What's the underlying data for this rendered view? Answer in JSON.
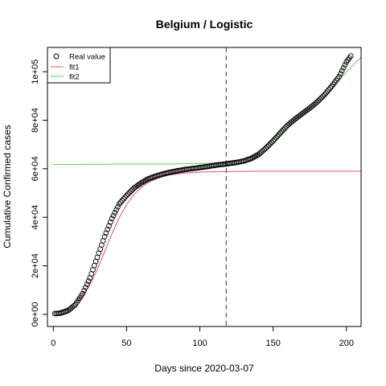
{
  "chart_data": {
    "type": "scatter",
    "title": "Belgium / Logistic",
    "xlabel": "Days since 2020-03-07",
    "ylabel": "Cumulative Confirmed cases",
    "xlim": [
      -4,
      210
    ],
    "ylim": [
      -5000,
      110000
    ],
    "x_ticks": [
      0,
      50,
      100,
      150,
      200
    ],
    "x_tick_labels": [
      "0",
      "50",
      "100",
      "150",
      "200"
    ],
    "y_ticks": [
      0,
      20000,
      40000,
      60000,
      80000,
      100000
    ],
    "y_tick_labels": [
      "0e+00",
      "2e+04",
      "4e+04",
      "6e+04",
      "8e+04",
      "1e+05"
    ],
    "grid": false,
    "legend_position": "top-left",
    "vline_x": 118,
    "colors": {
      "points": "#000000",
      "fit1": "#DF536B",
      "fit2": "#61D04F",
      "vline": "#555555"
    },
    "legend": [
      {
        "label": "Real value",
        "kind": "point",
        "color": "#000000"
      },
      {
        "label": "fit1",
        "kind": "line",
        "color": "#DF536B"
      },
      {
        "label": "fit2",
        "kind": "line",
        "color": "#61D04F"
      }
    ],
    "series": [
      {
        "name": "Real value",
        "kind": "points",
        "x": [
          1,
          5,
          10,
          15,
          20,
          25,
          30,
          35,
          40,
          45,
          50,
          55,
          60,
          65,
          70,
          75,
          80,
          85,
          90,
          95,
          100,
          105,
          110,
          115,
          118,
          120,
          125,
          130,
          135,
          140,
          145,
          150,
          155,
          160,
          165,
          170,
          175,
          180,
          185,
          190,
          195,
          200,
          203
        ],
        "y": [
          300,
          500,
          1500,
          4000,
          8500,
          15000,
          23500,
          32000,
          39500,
          45500,
          49000,
          52000,
          54200,
          55900,
          57000,
          57900,
          58600,
          59200,
          59700,
          60100,
          60500,
          60900,
          61400,
          61800,
          62000,
          62200,
          62600,
          63200,
          64200,
          65800,
          68500,
          71500,
          74800,
          78000,
          80500,
          82800,
          85000,
          87500,
          90500,
          94000,
          98000,
          104000,
          106500
        ]
      },
      {
        "name": "fit1",
        "kind": "line",
        "x": [
          0,
          5,
          10,
          15,
          20,
          25,
          30,
          35,
          40,
          45,
          50,
          55,
          60,
          65,
          70,
          75,
          80,
          85,
          90,
          95,
          100,
          110,
          120,
          140,
          160,
          180,
          200,
          210
        ],
        "y": [
          900,
          1600,
          2700,
          4600,
          7700,
          12300,
          18500,
          25800,
          33200,
          39900,
          45300,
          49300,
          52300,
          54400,
          55800,
          56800,
          57500,
          57900,
          58200,
          58400,
          58600,
          58800,
          58900,
          59000,
          59000,
          59000,
          59000,
          59000
        ]
      },
      {
        "name": "fit2",
        "kind": "line",
        "x": [
          0,
          20,
          40,
          60,
          80,
          100,
          110,
          115,
          120,
          125,
          130,
          135,
          140,
          145,
          150,
          155,
          160,
          165,
          170,
          175,
          180,
          185,
          190,
          195,
          200,
          205,
          210
        ],
        "y": [
          61800,
          61800,
          61900,
          61950,
          62000,
          62150,
          62300,
          62500,
          62900,
          63400,
          64200,
          65400,
          67200,
          69400,
          72100,
          75000,
          77800,
          80400,
          82800,
          85100,
          87600,
          90200,
          93200,
          96500,
          99800,
          103000,
          106000
        ]
      }
    ]
  }
}
